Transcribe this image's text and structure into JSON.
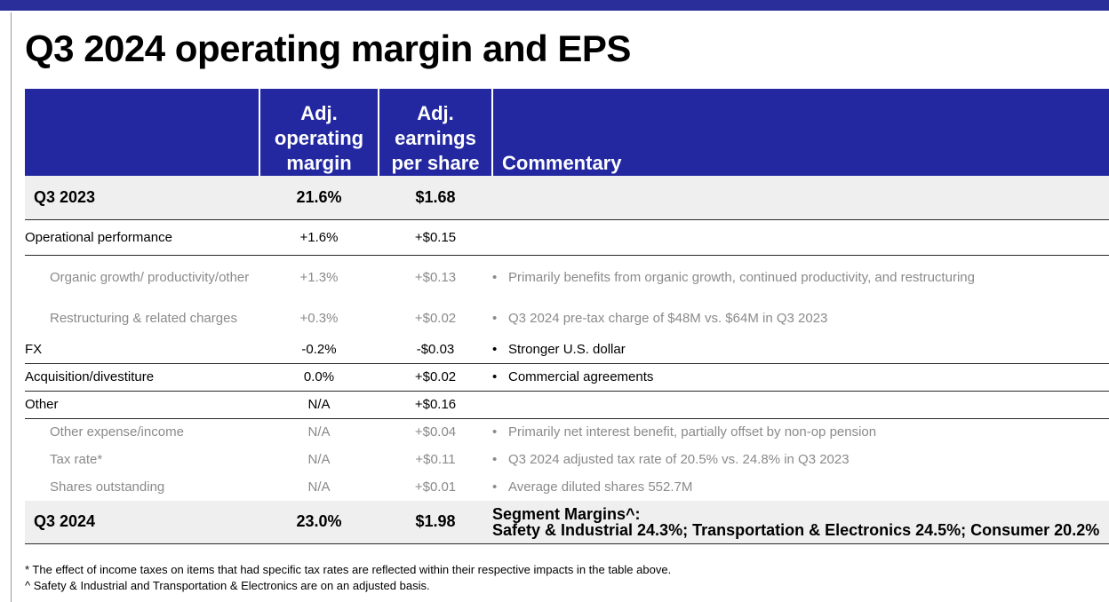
{
  "title": "Q3 2024 operating margin and EPS",
  "table": {
    "headers": {
      "margin": [
        "Adj.",
        "operating",
        "margin"
      ],
      "eps": [
        "Adj.",
        "earnings",
        "per share"
      ],
      "commentary": "Commentary"
    },
    "rows": [
      {
        "label": "Q3 2023",
        "margin": "21.6%",
        "eps": "$1.68",
        "commentary": ""
      },
      {
        "label": "Operational performance",
        "margin": "+1.6%",
        "eps": "+$0.15",
        "commentary": ""
      },
      {
        "label": "Organic growth/ productivity/other",
        "margin": "+1.3%",
        "eps": "+$0.13",
        "commentary": "Primarily benefits from organic growth, continued productivity, and restructuring"
      },
      {
        "label": "Restructuring & related charges",
        "margin": "+0.3%",
        "eps": "+$0.02",
        "commentary": "Q3 2024 pre-tax charge of $48M vs. $64M in Q3 2023"
      },
      {
        "label": "FX",
        "margin": "-0.2%",
        "eps": "-$0.03",
        "commentary": "Stronger U.S. dollar"
      },
      {
        "label": "Acquisition/divestiture",
        "margin": "0.0%",
        "eps": "+$0.02",
        "commentary": "Commercial agreements"
      },
      {
        "label": "Other",
        "margin": "N/A",
        "eps": "+$0.16",
        "commentary": ""
      },
      {
        "label": "Other expense/income",
        "margin": "N/A",
        "eps": "+$0.04",
        "commentary": "Primarily net interest benefit, partially offset by non-op pension"
      },
      {
        "label": "Tax rate*",
        "margin": "N/A",
        "eps": "+$0.11",
        "commentary": "Q3 2024 adjusted tax rate of 20.5% vs. 24.8% in Q3 2023"
      },
      {
        "label": "Shares outstanding",
        "margin": "N/A",
        "eps": "+$0.01",
        "commentary": "Average diluted shares 552.7M"
      },
      {
        "label": "Q3 2024",
        "margin": "23.0%",
        "eps": "$1.98",
        "commentary": [
          "Segment Margins^:",
          "Safety & Industrial 24.3%; Transportation & Electronics 24.5%; Consumer 20.2%"
        ]
      }
    ]
  },
  "bullet": "•",
  "footnotes": [
    "* The effect of income taxes on items that had specific tax rates are reflected within their respective impacts in the table above.",
    "^ Safety & Industrial and Transportation & Electronics are on an adjusted basis."
  ]
}
